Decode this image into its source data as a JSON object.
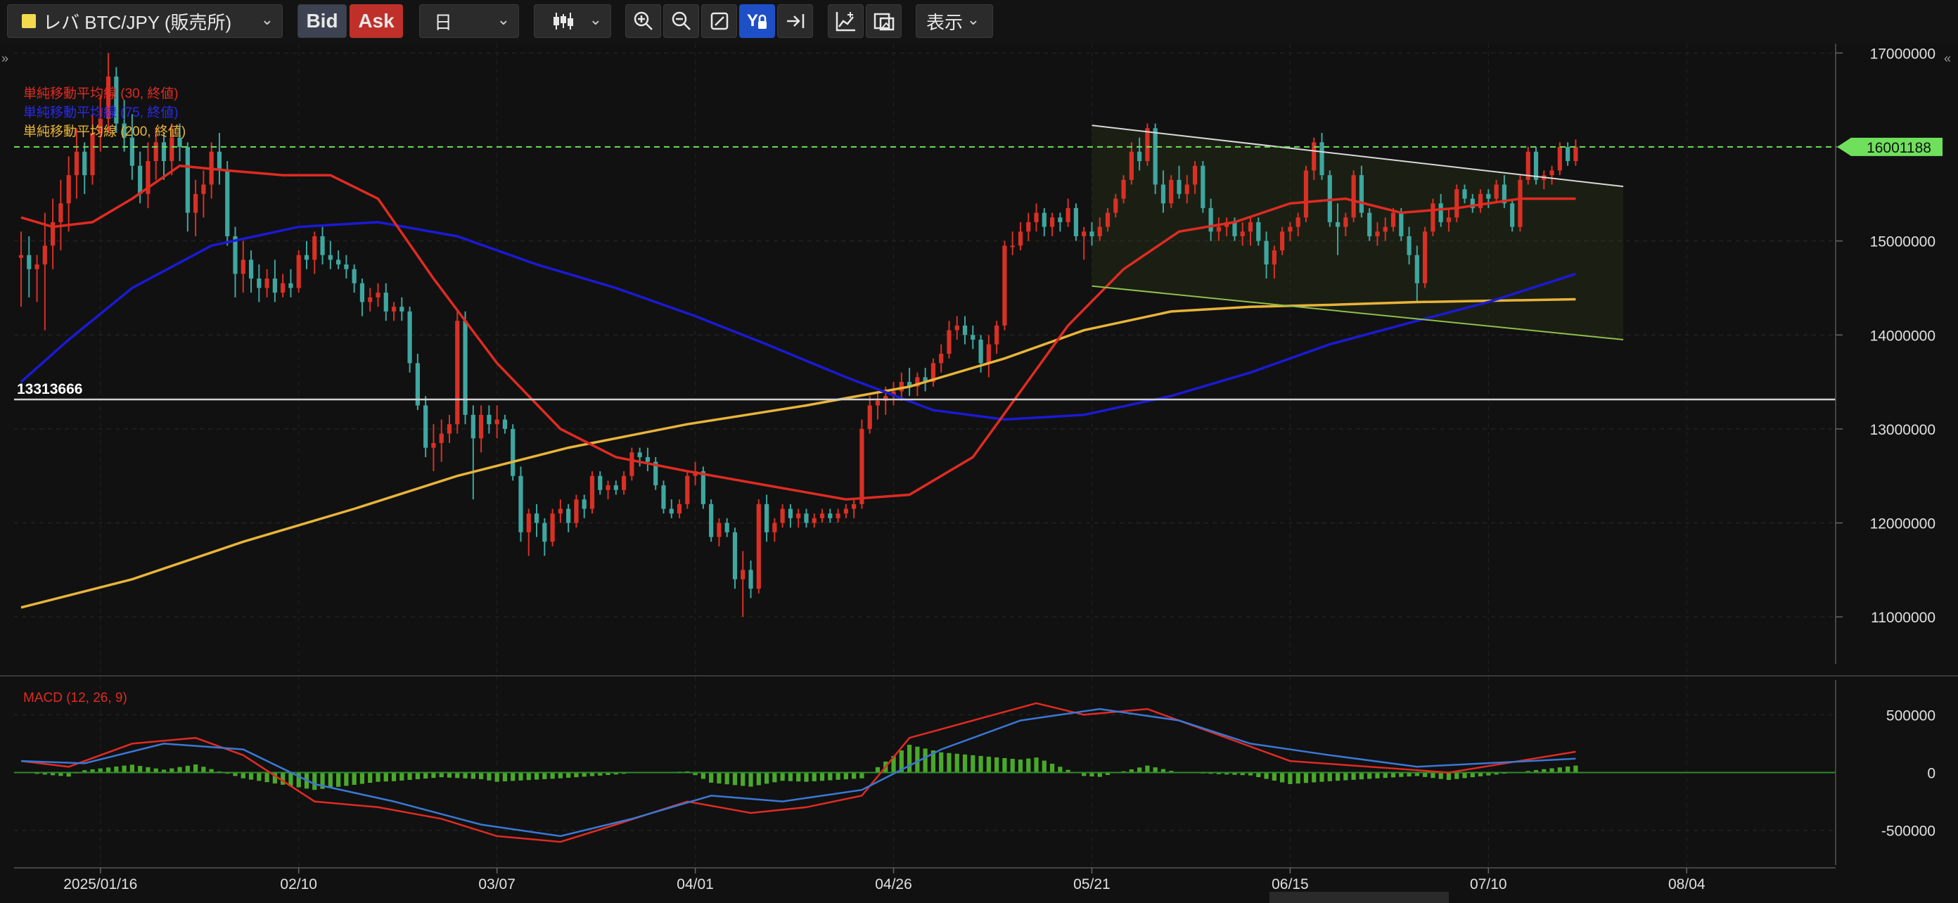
{
  "toolbar": {
    "symbol": "レバ BTC/JPY (販売所)",
    "bid_label": "Bid",
    "ask_label": "Ask",
    "period": "日",
    "display_label": "表示",
    "icons": [
      "zoom-in-icon",
      "zoom-out-icon",
      "fit-icon",
      "y-lock-icon",
      "scroll-end-icon",
      "add-indicator-icon",
      "drawing-icon"
    ]
  },
  "chart_data": [
    {
      "type": "candlestick",
      "legend": [
        {
          "label": "単純移動平均線 (30, 終値)",
          "color": "#e02b22"
        },
        {
          "label": "単純移動平均線 (75, 終値)",
          "color": "#1a1ad6"
        },
        {
          "label": "単純移動平均線 (200, 終値)",
          "color": "#e8b43a"
        }
      ],
      "ylim": [
        10500000,
        17100000
      ],
      "yticks": [
        11000000,
        12000000,
        13000000,
        14000000,
        15000000,
        16000000,
        17000000
      ],
      "ytick_labels": [
        "11000000",
        "12000000",
        "13000000",
        "14000000",
        "15000000",
        "16000000",
        "17000000"
      ],
      "x_tick_labels": [
        "2025/01/16",
        "02/10",
        "03/07",
        "04/01",
        "04/26",
        "05/21",
        "06/15",
        "07/10",
        "08/04"
      ],
      "x_start": "2025-01-06",
      "x_end": "2025-08-21",
      "current_price": {
        "value": 16001188,
        "label": "16001188",
        "color": "#6fe05c"
      },
      "horizontal_line": {
        "value": 13313666,
        "label": "13313666"
      },
      "channel": {
        "upper": [
          [
            "2025-05-21",
            16230000
          ],
          [
            "2025-07-27",
            15580000
          ]
        ],
        "lower": [
          [
            "2025-05-21",
            14520000
          ],
          [
            "2025-07-27",
            13950000
          ]
        ]
      },
      "candles_csv": "2025-01-06,14820000,15100000,14300000,14850000;2025-01-07,14850000,15050000,14400000,14700000;2025-01-08,14700000,14850000,14350000,14750000;2025-01-09,14750000,15300000,14050000,14950000;2025-01-10,14950000,15450000,14700000,15200000;2025-01-11,15200000,15650000,14900000,15400000;2025-01-12,15400000,15900000,15100000,15700000;2025-01-13,15700000,16200000,15450000,15950000;2025-01-14,15950000,16050000,15500000,15700000;2025-01-15,15700000,16350000,15600000,16150000;2025-01-16,16150000,16550000,15950000,16300000;2025-01-17,16300000,17000000,16150000,16750000;2025-01-18,16750000,16850000,16150000,16250000;2025-01-19,16250000,16500000,15950000,16100000;2025-01-20,16100000,16350000,15650000,15800000;2025-01-21,15800000,15950000,15400000,15500000;2025-01-22,15500000,16050000,15350000,15850000;2025-01-23,15850000,16200000,15650000,16050000;2025-01-24,16050000,16150000,15650000,15850000;2025-01-25,15850000,16250000,15700000,16100000;2025-01-26,16100000,16250000,15850000,16000000;2025-01-27,16000000,16050000,15100000,15300000;2025-01-28,15300000,15650000,15050000,15500000;2025-01-29,15500000,15750000,15250000,15600000;2025-01-30,15600000,16050000,15450000,15950000;2025-01-31,15950000,16150000,15600000,15750000;2025-02-01,15750000,15850000,14950000,15050000;2025-02-02,15050000,15150000,14400000,14650000;2025-02-03,14650000,15000000,14450000,14800000;2025-02-04,14800000,14900000,14450000,14600000;2025-02-05,14600000,14750000,14350000,14500000;2025-02-06,14500000,14700000,14400000,14600000;2025-02-07,14600000,14800000,14350000,14450000;2025-02-08,14450000,14650000,14400000,14550000;2025-02-09,14550000,14700000,14400000,14500000;2025-02-10,14500000,14900000,14450000,14850000;2025-02-11,14850000,15000000,14700000,14800000;2025-02-12,14800000,15100000,14650000,15050000;2025-02-13,15050000,15150000,14750000,14850000;2025-02-14,14850000,15000000,14700000,14800000;2025-02-15,14800000,14900000,14700000,14750000;2025-02-16,14750000,14850000,14600000,14700000;2025-02-17,14700000,14750000,14450000,14550000;2025-02-18,14550000,14600000,14200000,14350000;2025-02-19,14350000,14500000,14250000,14400000;2025-02-20,14400000,14550000,14300000,14450000;2025-02-21,14450000,14550000,14150000,14250000;2025-02-22,14250000,14350000,14150000,14300000;2025-02-23,14300000,14400000,14150000,14250000;2025-02-24,14250000,14300000,13600000,13700000;2025-02-25,13700000,13800000,13200000,13250000;2025-02-26,13250000,13350000,12700000,12800000;2025-02-27,12800000,13050000,12550000,12850000;2025-02-28,12850000,13100000,12650000,12950000;2025-03-01,12950000,13150000,12850000,13050000;2025-03-02,13050000,14250000,12950000,14150000;2025-03-03,14150000,14250000,13050000,13150000;2025-03-04,13150000,13250000,12250000,12900000;2025-03-05,12900000,13250000,12750000,13150000;2025-03-06,13150000,13250000,12950000,13050000;2025-03-07,13050000,13250000,12900000,13100000;2025-03-08,13100000,13150000,12950000,13000000;2025-03-09,13000000,13050000,12450000,12500000;2025-03-10,12500000,12600000,11800000,11900000;2025-03-11,11900000,12150000,11650000,12100000;2025-03-12,12100000,12200000,11850000,12000000;2025-03-13,12000000,12050000,11650000,11800000;2025-03-14,11800000,12150000,11750000,12100000;2025-03-15,12100000,12250000,12000000,12150000;2025-03-16,12150000,12200000,11900000,12000000;2025-03-17,12000000,12300000,11950000,12250000;2025-03-18,12250000,12300000,12050000,12150000;2025-03-19,12150000,12550000,12100000,12500000;2025-03-20,12500000,12550000,12300000,12350000;2025-03-21,12350000,12450000,12250000,12400000;2025-03-22,12400000,12450000,12300000,12350000;2025-03-23,12350000,12550000,12300000,12500000;2025-03-24,12500000,12800000,12450000,12750000;2025-03-25,12750000,12800000,12600000,12700000;2025-03-26,12700000,12800000,12550000,12650000;2025-03-27,12650000,12700000,12350000,12400000;2025-03-28,12400000,12450000,12100000,12150000;2025-03-29,12150000,12250000,12050000,12100000;2025-03-30,12100000,12250000,12050000,12200000;2025-03-31,12200000,12550000,12150000,12500000;2025-04-01,12500000,12650000,12400000,12550000;2025-04-02,12550000,12600000,12150000,12200000;2025-04-03,12200000,12250000,11800000,11850000;2025-04-04,11850000,12050000,11750000,12000000;2025-04-05,12000000,12050000,11850000,11900000;2025-04-06,11900000,11950000,11300000,11400000;2025-04-07,11400000,11700000,11000000,11500000;2025-04-08,11500000,11600000,11200000,11300000;2025-04-09,11300000,12250000,11250000,12200000;2025-04-10,12200000,12300000,11800000,11900000;2025-04-11,11900000,12050000,11800000,12000000;2025-04-12,12000000,12200000,11950000,12150000;2025-04-13,12150000,12200000,11950000,12050000;2025-04-14,12050000,12150000,11950000,12100000;2025-04-15,12100000,12150000,11950000,12000000;2025-04-16,12000000,12100000,11950000,12050000;2025-04-17,12050000,12150000,12000000,12100000;2025-04-18,12100000,12150000,12000000,12050000;2025-04-19,12050000,12150000,12000000,12100000;2025-04-20,12100000,12200000,12050000,12150000;2025-04-21,12150000,12250000,12050000,12200000;2025-04-22,12200000,13100000,12150000,13000000;2025-04-23,13000000,13350000,12950000,13250000;2025-04-24,13250000,13400000,13100000,13300000;2025-04-25,13300000,13450000,13150000,13350000;2025-04-26,13350000,13500000,13250000,13400000;2025-04-27,13400000,13600000,13300000,13500000;2025-04-28,13500000,13650000,13350000,13450000;2025-04-29,13450000,13600000,13350000,13550000;2025-04-30,13550000,13650000,13400000,13500000;2025-05-01,13500000,13750000,13450000,13700000;2025-05-02,13700000,13900000,13600000,13800000;2025-05-03,13800000,14150000,13750000,14050000;2025-05-04,14050000,14200000,13950000,14100000;2025-05-05,14100000,14200000,13900000,14000000;2025-05-06,14000000,14100000,13850000,13950000;2025-05-07,13950000,14000000,13600000,13700000;2025-05-08,13700000,14000000,13550000,13900000;2025-05-09,13900000,14150000,13800000,14100000;2025-05-10,14100000,15000000,14050000,14950000;2025-05-11,14950000,15100000,14850000,14950000;2025-05-12,14950000,15200000,14900000,15100000;2025-05-13,15100000,15300000,15000000,15200000;2025-05-14,15200000,15400000,15100000,15300000;2025-05-15,15300000,15350000,15050000,15150000;2025-05-16,15150000,15300000,15050000,15250000;2025-05-17,15250000,15300000,15100000,15200000;2025-05-18,15200000,15450000,15150000,15350000;2025-05-19,15350000,15400000,15000000,15050000;2025-05-20,15050000,15150000,14800000,15100000;2025-05-21,15100000,15200000,14950000,15050000;2025-05-22,15050000,15250000,15000000,15150000;2025-05-23,15150000,15350000,15100000,15300000;2025-05-24,15300000,15500000,15250000,15450000;2025-05-25,15450000,15700000,15400000,15650000;2025-05-26,15650000,16050000,15600000,15950000;2025-05-27,15950000,16100000,15750000,15850000;2025-05-28,15850000,16250000,15800000,16200000;2025-05-29,16200000,16250000,15500000,15600000;2025-05-30,15600000,15750000,15300000,15400000;2025-05-31,15400000,15700000,15350000,15650000;2025-06-01,15650000,15800000,15450000,15500000;2025-06-02,15500000,15700000,15400000,15600000;2025-06-03,15600000,15850000,15500000,15800000;2025-06-04,15800000,15850000,15300000,15350000;2025-06-05,15350000,15450000,15000000,15100000;2025-06-06,15100000,15250000,15000000,15150000;2025-06-07,15150000,15250000,15050000,15200000;2025-06-08,15200000,15250000,15000000,15050000;2025-06-09,15050000,15200000,14950000,15100000;2025-06-10,15100000,15250000,14950000,15200000;2025-06-11,15200000,15250000,14950000,15000000;2025-06-12,15000000,15100000,14600000,14750000;2025-06-13,14750000,14950000,14600000,14900000;2025-06-14,14900000,15150000,14850000,15100000;2025-06-15,15100000,15200000,15000000,15150000;2025-06-16,15150000,15300000,15050000,15250000;2025-06-17,15250000,15800000,15200000,15750000;2025-06-18,15750000,16100000,15650000,16050000;2025-06-19,16050000,16150000,15650000,15700000;2025-06-20,15700000,15750000,15150000,15200000;2025-06-21,15200000,15400000,14850000,15150000;2025-06-22,15150000,15300000,15050000,15250000;2025-06-23,15250000,15750000,15200000,15700000;2025-06-24,15700000,15800000,15250000,15300000;2025-06-25,15300000,15350000,15000000,15050000;2025-06-26,15050000,15200000,14950000,15100000;2025-06-27,15100000,15250000,15000000,15150000;2025-06-28,15150000,15350000,15100000,15300000;2025-06-29,15300000,15350000,15000000,15050000;2025-06-30,15050000,15150000,14750000,14850000;2025-07-01,14850000,14950000,14350000,14550000;2025-07-02,14550000,15150000,14500000,15100000;2025-07-03,15100000,15450000,15050000,15400000;2025-07-04,15400000,15500000,15150000,15200000;2025-07-05,15200000,15350000,15100000,15250000;2025-07-06,15250000,15600000,15200000,15550000;2025-07-07,15550000,15600000,15400000,15450000;2025-07-08,15450000,15500000,15300000,15350000;2025-07-09,15350000,15550000,15300000,15500000;2025-07-10,15500000,15550000,15350000,15450000;2025-07-11,15450000,15650000,15400000,15600000;2025-07-12,15600000,15700000,15350000,15400000;2025-07-13,15400000,15450000,15100000,15150000;2025-07-14,15150000,15700000,15100000,15650000;2025-07-15,15650000,16000000,15600000,15950000;2025-07-16,15950000,16000000,15600000,15650000;2025-07-17,15650000,15750000,15550000,15700000;2025-07-18,15700000,15800000,15600000,15750000;2025-07-19,15750000,16050000,15700000,16000000;2025-07-20,16000000,16050000,15800000,15850000;2025-07-21,15850000,16080000,15800000,16001188",
      "sma30": [
        [
          "2025-01-06",
          15250000
        ],
        [
          "2025-01-10",
          15150000
        ],
        [
          "2025-01-15",
          15200000
        ],
        [
          "2025-01-20",
          15450000
        ],
        [
          "2025-01-26",
          15800000
        ],
        [
          "2025-02-01",
          15750000
        ],
        [
          "2025-02-08",
          15700000
        ],
        [
          "2025-02-14",
          15700000
        ],
        [
          "2025-02-20",
          15450000
        ],
        [
          "2025-02-27",
          14600000
        ],
        [
          "2025-03-07",
          13700000
        ],
        [
          "2025-03-15",
          13000000
        ],
        [
          "2025-03-22",
          12700000
        ],
        [
          "2025-03-31",
          12550000
        ],
        [
          "2025-04-10",
          12400000
        ],
        [
          "2025-04-20",
          12250000
        ],
        [
          "2025-04-28",
          12300000
        ],
        [
          "2025-05-06",
          12700000
        ],
        [
          "2025-05-12",
          13400000
        ],
        [
          "2025-05-18",
          14100000
        ],
        [
          "2025-05-25",
          14700000
        ],
        [
          "2025-06-01",
          15100000
        ],
        [
          "2025-06-08",
          15200000
        ],
        [
          "2025-06-15",
          15400000
        ],
        [
          "2025-06-22",
          15450000
        ],
        [
          "2025-06-29",
          15300000
        ],
        [
          "2025-07-06",
          15350000
        ],
        [
          "2025-07-14",
          15450000
        ],
        [
          "2025-07-21",
          15450000
        ]
      ],
      "sma75": [
        [
          "2025-01-06",
          13500000
        ],
        [
          "2025-01-12",
          13950000
        ],
        [
          "2025-01-20",
          14500000
        ],
        [
          "2025-01-30",
          14950000
        ],
        [
          "2025-02-10",
          15150000
        ],
        [
          "2025-02-20",
          15200000
        ],
        [
          "2025-03-02",
          15050000
        ],
        [
          "2025-03-12",
          14750000
        ],
        [
          "2025-03-22",
          14500000
        ],
        [
          "2025-04-01",
          14200000
        ],
        [
          "2025-04-10",
          13900000
        ],
        [
          "2025-04-20",
          13550000
        ],
        [
          "2025-05-01",
          13200000
        ],
        [
          "2025-05-10",
          13100000
        ],
        [
          "2025-05-20",
          13150000
        ],
        [
          "2025-05-31",
          13350000
        ],
        [
          "2025-06-10",
          13600000
        ],
        [
          "2025-06-20",
          13900000
        ],
        [
          "2025-07-01",
          14150000
        ],
        [
          "2025-07-10",
          14350000
        ],
        [
          "2025-07-21",
          14650000
        ]
      ],
      "sma200": [
        [
          "2025-01-06",
          11100000
        ],
        [
          "2025-01-20",
          11400000
        ],
        [
          "2025-02-03",
          11800000
        ],
        [
          "2025-02-17",
          12150000
        ],
        [
          "2025-03-02",
          12500000
        ],
        [
          "2025-03-16",
          12800000
        ],
        [
          "2025-03-31",
          13050000
        ],
        [
          "2025-04-15",
          13250000
        ],
        [
          "2025-04-28",
          13450000
        ],
        [
          "2025-05-10",
          13750000
        ],
        [
          "2025-05-20",
          14050000
        ],
        [
          "2025-05-31",
          14250000
        ],
        [
          "2025-06-10",
          14300000
        ],
        [
          "2025-06-20",
          14320000
        ],
        [
          "2025-07-01",
          14350000
        ],
        [
          "2025-07-21",
          14380000
        ]
      ]
    },
    {
      "type": "macd",
      "legend": "MACD (12, 26, 9)",
      "ylim": [
        -800000,
        800000
      ],
      "yticks": [
        -500000,
        0,
        500000
      ],
      "ytick_labels": [
        "-500000",
        "0",
        "500000"
      ],
      "macd_line": [
        [
          "2025-01-06",
          100000
        ],
        [
          "2025-01-12",
          50000
        ],
        [
          "2025-01-20",
          250000
        ],
        [
          "2025-01-28",
          300000
        ],
        [
          "2025-02-03",
          150000
        ],
        [
          "2025-02-12",
          -250000
        ],
        [
          "2025-02-20",
          -300000
        ],
        [
          "2025-02-28",
          -400000
        ],
        [
          "2025-03-07",
          -550000
        ],
        [
          "2025-03-15",
          -600000
        ],
        [
          "2025-03-22",
          -450000
        ],
        [
          "2025-03-31",
          -250000
        ],
        [
          "2025-04-08",
          -350000
        ],
        [
          "2025-04-15",
          -300000
        ],
        [
          "2025-04-22",
          -200000
        ],
        [
          "2025-04-28",
          300000
        ],
        [
          "2025-05-06",
          450000
        ],
        [
          "2025-05-14",
          600000
        ],
        [
          "2025-05-20",
          500000
        ],
        [
          "2025-05-28",
          550000
        ],
        [
          "2025-06-05",
          350000
        ],
        [
          "2025-06-15",
          100000
        ],
        [
          "2025-06-25",
          50000
        ],
        [
          "2025-07-05",
          0
        ],
        [
          "2025-07-21",
          180000
        ]
      ],
      "signal_line": [
        [
          "2025-01-06",
          100000
        ],
        [
          "2025-01-14",
          80000
        ],
        [
          "2025-01-24",
          250000
        ],
        [
          "2025-02-03",
          200000
        ],
        [
          "2025-02-12",
          -100000
        ],
        [
          "2025-02-22",
          -250000
        ],
        [
          "2025-03-05",
          -450000
        ],
        [
          "2025-03-15",
          -550000
        ],
        [
          "2025-03-24",
          -400000
        ],
        [
          "2025-04-03",
          -200000
        ],
        [
          "2025-04-12",
          -250000
        ],
        [
          "2025-04-22",
          -150000
        ],
        [
          "2025-05-02",
          200000
        ],
        [
          "2025-05-12",
          450000
        ],
        [
          "2025-05-22",
          550000
        ],
        [
          "2025-06-01",
          450000
        ],
        [
          "2025-06-10",
          250000
        ],
        [
          "2025-06-20",
          150000
        ],
        [
          "2025-07-01",
          50000
        ],
        [
          "2025-07-21",
          120000
        ]
      ]
    }
  ]
}
